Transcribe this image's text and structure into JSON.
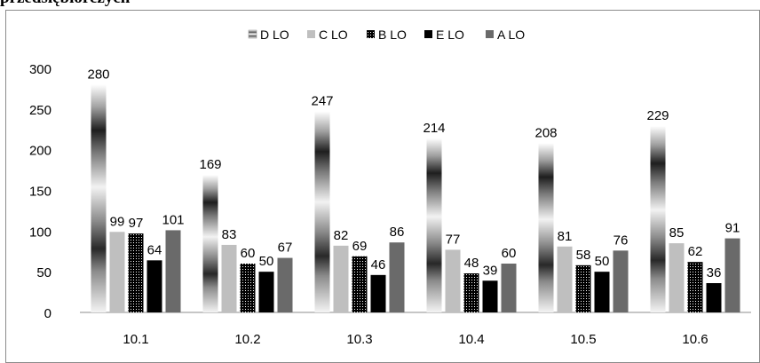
{
  "heading": "przedsiębiorczych",
  "chart_data": {
    "type": "bar",
    "categories": [
      "10.1",
      "10.2",
      "10.3",
      "10.4",
      "10.5",
      "10.6"
    ],
    "series": [
      {
        "name": "D LO",
        "values": [
          280,
          169,
          247,
          214,
          208,
          229
        ]
      },
      {
        "name": "C LO",
        "values": [
          99,
          83,
          82,
          77,
          81,
          85
        ]
      },
      {
        "name": "B LO",
        "values": [
          97,
          60,
          69,
          48,
          58,
          62
        ]
      },
      {
        "name": "E LO",
        "values": [
          64,
          50,
          46,
          39,
          50,
          36
        ]
      },
      {
        "name": "A LO",
        "values": [
          101,
          67,
          86,
          60,
          76,
          91
        ]
      }
    ],
    "ylim": [
      0,
      300
    ],
    "yticks": [
      0,
      50,
      100,
      150,
      200,
      250,
      300
    ],
    "grid": false,
    "legend_position": "top",
    "data_labels": true
  },
  "colors": {
    "D LO": "gradient-gray",
    "C LO": "#bfbfbf",
    "B LO": "dotted-black",
    "E LO": "#000000",
    "A LO": "#6a6a6a"
  }
}
